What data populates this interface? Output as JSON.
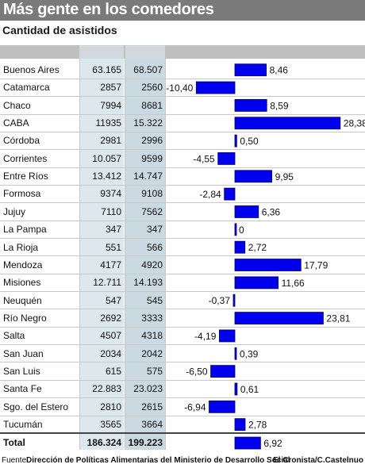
{
  "header": {
    "title": "Más gente en los comedores",
    "subtitle": "Cantidad de asistidos"
  },
  "footer": {
    "label": "Fuente:",
    "source": "Dirección de Políticas Alimentarias del Ministerio de Desarrollo Social",
    "credit": "El Cronista/C.Castelnuo"
  },
  "colors": {
    "title_bar": "#7a7a7a",
    "bar_fill": "#0000ee",
    "bar_stroke": "#000066"
  },
  "chart_data": {
    "type": "bar",
    "orientation": "horizontal",
    "title": "Más gente en los comedores",
    "subtitle": "Cantidad de asistidos",
    "categories": [
      "Buenos Aires",
      "Catamarca",
      "Chaco",
      "CABA",
      "Córdoba",
      "Corrientes",
      "Entre Ríos",
      "Formosa",
      "Jujuy",
      "La Pampa",
      "La Rioja",
      "Mendoza",
      "Misiones",
      "Neuquén",
      "Río Negro",
      "Salta",
      "San Juan",
      "San Luis",
      "Santa Fe",
      "Sgo. del Estero",
      "Tucumán"
    ],
    "col1": [
      "63.165",
      "2857",
      "7994",
      "11935",
      "2981",
      "10.057",
      "13.412",
      "9374",
      "7110",
      "347",
      "551",
      "4177",
      "12.711",
      "547",
      "2692",
      "4507",
      "2034",
      "615",
      "22.883",
      "2810",
      "3565"
    ],
    "col2": [
      "68.507",
      "2560",
      "8681",
      "15.322",
      "2996",
      "9599",
      "14.747",
      "9108",
      "7562",
      "347",
      "566",
      "4920",
      "14.193",
      "545",
      "3333",
      "4318",
      "2042",
      "575",
      "23.023",
      "2615",
      "3664"
    ],
    "labels": [
      "8,46",
      "-10,40",
      "8,59",
      "28,38",
      "0,50",
      "-4,55",
      "9,95",
      "-2,84",
      "6,36",
      "0",
      "2,72",
      "17,79",
      "11,66",
      "-0,37",
      "23,81",
      "-4,19",
      "0,39",
      "-6,50",
      "0,61",
      "-6,94",
      "2,78"
    ],
    "values": [
      8.46,
      -10.4,
      8.59,
      28.38,
      0.5,
      -4.55,
      9.95,
      -2.84,
      6.36,
      0,
      2.72,
      17.79,
      11.66,
      -0.37,
      23.81,
      -4.19,
      0.39,
      -6.5,
      0.61,
      -6.94,
      2.78
    ],
    "total": {
      "label": "Total",
      "col1": "186.324",
      "col2": "199.223",
      "value": 6.92,
      "value_label": "6,92"
    },
    "xlim": [
      -10.4,
      28.38
    ],
    "grid": false
  }
}
